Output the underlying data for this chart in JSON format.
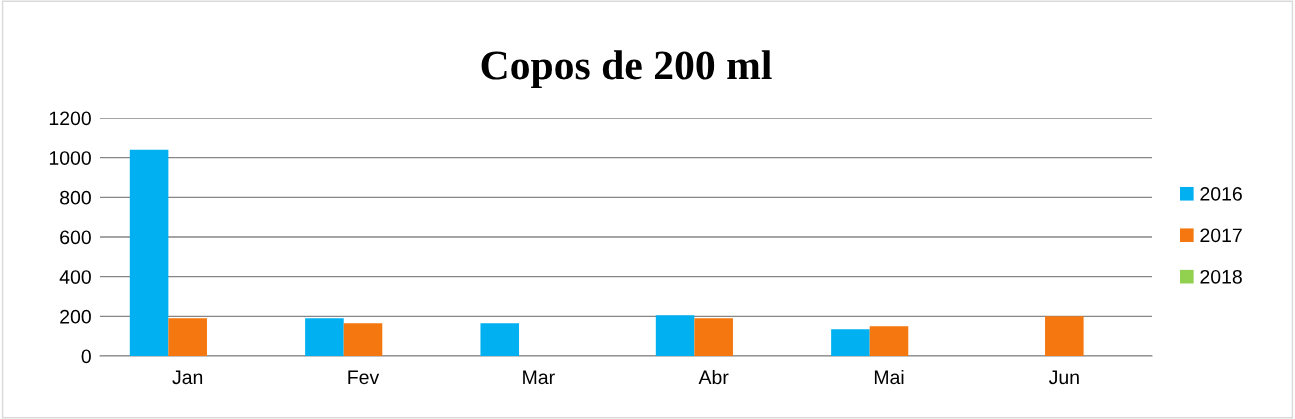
{
  "chart_data": {
    "type": "bar",
    "title": "Copos de 200 ml",
    "categories": [
      "Jan",
      "Fev",
      "Mar",
      "Abr",
      "Mai",
      "Jun"
    ],
    "series": [
      {
        "name": "2016",
        "color": "#00b0f0",
        "values": [
          1040,
          190,
          165,
          205,
          135,
          null
        ]
      },
      {
        "name": "2017",
        "color": "#f4770f",
        "values": [
          190,
          165,
          null,
          190,
          150,
          200
        ]
      },
      {
        "name": "2018",
        "color": "#92d050",
        "values": [
          null,
          null,
          null,
          null,
          null,
          null
        ]
      }
    ],
    "ylim": [
      0,
      1200
    ],
    "yticks": [
      0,
      200,
      400,
      600,
      800,
      1000,
      1200
    ],
    "grid": "y",
    "legend": "right"
  }
}
